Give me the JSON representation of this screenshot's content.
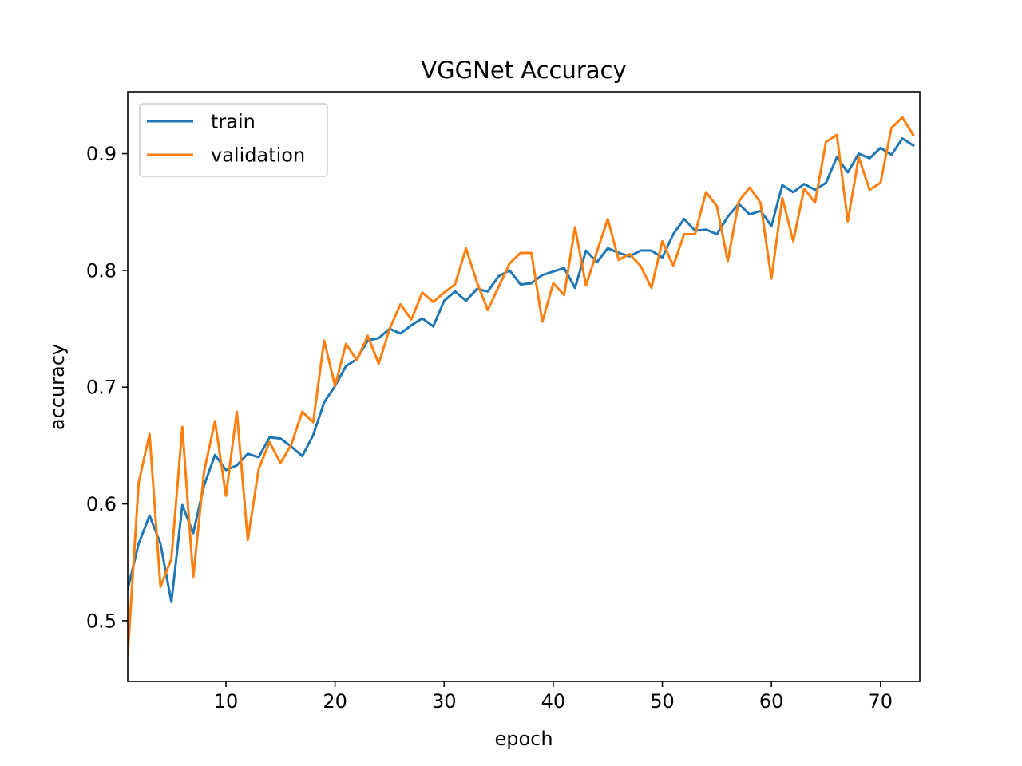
{
  "chart_data": {
    "type": "line",
    "title": "VGGNet Accuracy",
    "xlabel": "epoch",
    "ylabel": "accuracy",
    "xlim": [
      1,
      73.6
    ],
    "ylim": [
      0.448,
      0.953
    ],
    "x_ticks": [
      10,
      20,
      30,
      40,
      50,
      60,
      70
    ],
    "y_ticks": [
      0.5,
      0.6,
      0.7,
      0.8,
      0.9
    ],
    "y_tick_labels": [
      "0.5",
      "0.6",
      "0.7",
      "0.8",
      "0.9"
    ],
    "x": [
      1,
      2,
      3,
      4,
      5,
      6,
      7,
      8,
      9,
      10,
      11,
      12,
      13,
      14,
      15,
      16,
      17,
      18,
      19,
      20,
      21,
      22,
      23,
      24,
      25,
      26,
      27,
      28,
      29,
      30,
      31,
      32,
      33,
      34,
      35,
      36,
      37,
      38,
      39,
      40,
      41,
      42,
      43,
      44,
      45,
      46,
      47,
      48,
      49,
      50,
      51,
      52,
      53,
      54,
      55,
      56,
      57,
      58,
      59,
      60,
      61,
      62,
      63,
      64,
      65,
      66,
      67,
      68,
      69,
      70,
      71,
      72,
      73
    ],
    "grid": false,
    "legend_position": "upper-left",
    "series": [
      {
        "name": "train",
        "color": "#1f77b4",
        "values": [
          0.527,
          0.566,
          0.59,
          0.566,
          0.516,
          0.599,
          0.575,
          0.616,
          0.642,
          0.629,
          0.633,
          0.643,
          0.64,
          0.657,
          0.656,
          0.649,
          0.641,
          0.659,
          0.687,
          0.701,
          0.718,
          0.724,
          0.74,
          0.742,
          0.75,
          0.746,
          0.753,
          0.759,
          0.752,
          0.774,
          0.782,
          0.774,
          0.784,
          0.782,
          0.795,
          0.8,
          0.788,
          0.789,
          0.796,
          0.799,
          0.802,
          0.785,
          0.817,
          0.807,
          0.819,
          0.815,
          0.812,
          0.817,
          0.817,
          0.811,
          0.831,
          0.844,
          0.834,
          0.835,
          0.831,
          0.846,
          0.857,
          0.848,
          0.851,
          0.838,
          0.873,
          0.867,
          0.874,
          0.869,
          0.875,
          0.897,
          0.884,
          0.9,
          0.896,
          0.905,
          0.899,
          0.913,
          0.907
        ]
      },
      {
        "name": "validation",
        "color": "#ff7f0e",
        "values": [
          0.471,
          0.618,
          0.66,
          0.529,
          0.553,
          0.666,
          0.537,
          0.628,
          0.671,
          0.607,
          0.679,
          0.569,
          0.63,
          0.653,
          0.635,
          0.651,
          0.679,
          0.67,
          0.74,
          0.701,
          0.737,
          0.723,
          0.744,
          0.72,
          0.75,
          0.771,
          0.758,
          0.781,
          0.773,
          0.781,
          0.788,
          0.819,
          0.79,
          0.766,
          0.786,
          0.806,
          0.815,
          0.815,
          0.756,
          0.789,
          0.779,
          0.837,
          0.787,
          0.816,
          0.844,
          0.809,
          0.814,
          0.804,
          0.785,
          0.825,
          0.804,
          0.831,
          0.831,
          0.867,
          0.855,
          0.808,
          0.859,
          0.871,
          0.858,
          0.793,
          0.862,
          0.825,
          0.87,
          0.858,
          0.91,
          0.916,
          0.842,
          0.897,
          0.869,
          0.875,
          0.922,
          0.931,
          0.916
        ]
      }
    ]
  }
}
